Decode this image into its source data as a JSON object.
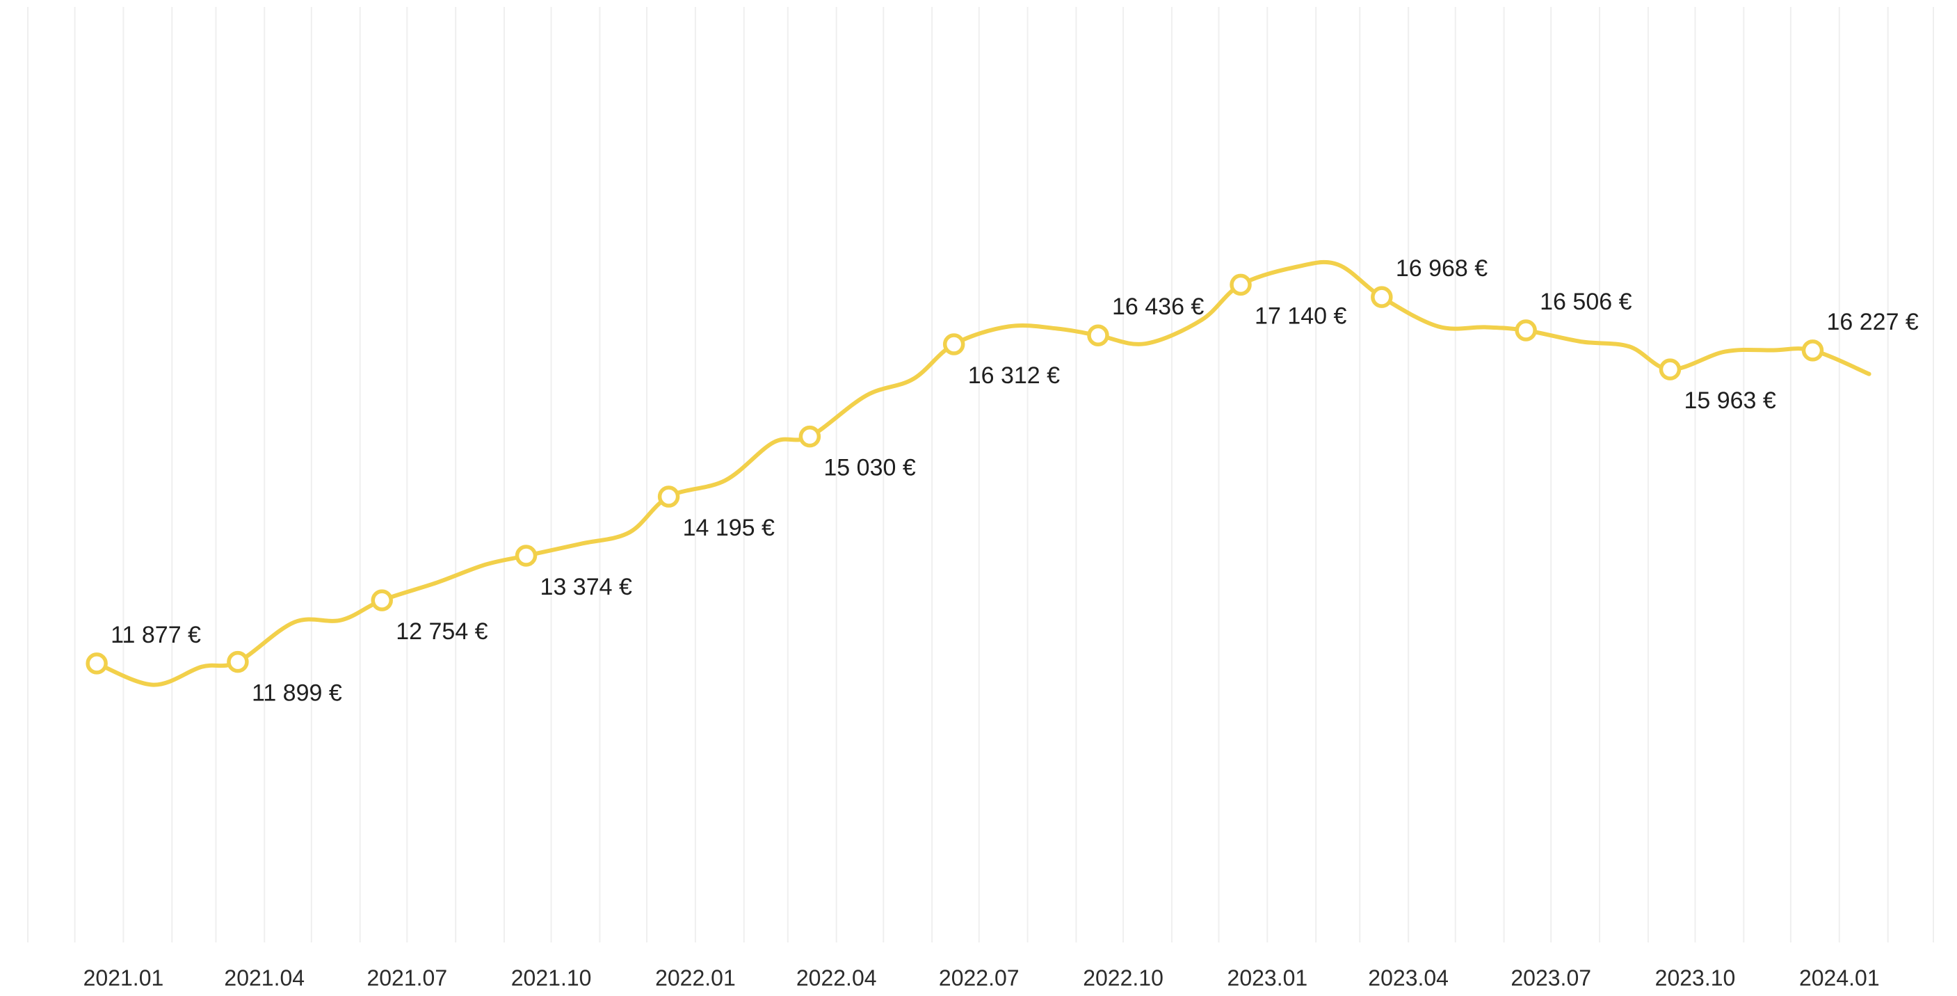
{
  "chart_data": {
    "type": "line",
    "title": "",
    "xlabel": "",
    "ylabel": "",
    "currency": "€",
    "series_color": "#f2d04a",
    "grid_color": "#efefef",
    "grid": "vertical",
    "y_range": [
      8000,
      21000
    ],
    "x_range": [
      "2020-11-01",
      "2024-03-01"
    ],
    "x_ticks": [
      {
        "date": "2021-01-01",
        "label": "2021.01"
      },
      {
        "date": "2021-04-01",
        "label": "2021.04"
      },
      {
        "date": "2021-07-01",
        "label": "2021.07"
      },
      {
        "date": "2021-10-01",
        "label": "2021.10"
      },
      {
        "date": "2022-01-01",
        "label": "2022.01"
      },
      {
        "date": "2022-04-01",
        "label": "2022.04"
      },
      {
        "date": "2022-07-01",
        "label": "2022.07"
      },
      {
        "date": "2022-10-01",
        "label": "2022.10"
      },
      {
        "date": "2023-01-01",
        "label": "2023.01"
      },
      {
        "date": "2023-04-01",
        "label": "2023.04"
      },
      {
        "date": "2023-07-01",
        "label": "2023.07"
      },
      {
        "date": "2023-10-01",
        "label": "2023.10"
      },
      {
        "date": "2024-01-01",
        "label": "2024.01"
      }
    ],
    "points": [
      {
        "date": "2020-12-15",
        "value": 11877,
        "label": "11 877 €",
        "label_pos": "above"
      },
      {
        "date": "2021-03-15",
        "value": 11899,
        "label": "11 899 €",
        "label_pos": "below"
      },
      {
        "date": "2021-06-15",
        "value": 12754,
        "label": "12 754 €",
        "label_pos": "below"
      },
      {
        "date": "2021-09-15",
        "value": 13374,
        "label": "13 374 €",
        "label_pos": "below"
      },
      {
        "date": "2021-12-15",
        "value": 14195,
        "label": "14 195 €",
        "label_pos": "below"
      },
      {
        "date": "2022-03-15",
        "value": 15030,
        "label": "15 030 €",
        "label_pos": "below"
      },
      {
        "date": "2022-06-15",
        "value": 16312,
        "label": "16 312 €",
        "label_pos": "below"
      },
      {
        "date": "2022-09-15",
        "value": 16436,
        "label": "16 436 €",
        "label_pos": "above"
      },
      {
        "date": "2022-12-15",
        "value": 17140,
        "label": "17 140 €",
        "label_pos": "below"
      },
      {
        "date": "2023-03-15",
        "value": 16968,
        "label": "16 968 €",
        "label_pos": "above"
      },
      {
        "date": "2023-06-15",
        "value": 16506,
        "label": "16 506 €",
        "label_pos": "above"
      },
      {
        "date": "2023-09-15",
        "value": 15963,
        "label": "15 963 €",
        "label_pos": "below"
      },
      {
        "date": "2023-12-15",
        "value": 16227,
        "label": "16 227 €",
        "label_pos": "above"
      }
    ],
    "curve": [
      {
        "date": "2020-12-15",
        "value": 11877
      },
      {
        "date": "2021-01-20",
        "value": 11580
      },
      {
        "date": "2021-02-20",
        "value": 11830
      },
      {
        "date": "2021-03-15",
        "value": 11899
      },
      {
        "date": "2021-04-20",
        "value": 12450
      },
      {
        "date": "2021-05-20",
        "value": 12480
      },
      {
        "date": "2021-06-15",
        "value": 12754
      },
      {
        "date": "2021-07-20",
        "value": 13000
      },
      {
        "date": "2021-08-20",
        "value": 13250
      },
      {
        "date": "2021-09-15",
        "value": 13374
      },
      {
        "date": "2021-10-20",
        "value": 13540
      },
      {
        "date": "2021-11-20",
        "value": 13700
      },
      {
        "date": "2021-12-15",
        "value": 14195
      },
      {
        "date": "2022-01-20",
        "value": 14420
      },
      {
        "date": "2022-02-20",
        "value": 14950
      },
      {
        "date": "2022-03-15",
        "value": 15030
      },
      {
        "date": "2022-04-20",
        "value": 15600
      },
      {
        "date": "2022-05-20",
        "value": 15830
      },
      {
        "date": "2022-06-15",
        "value": 16312
      },
      {
        "date": "2022-07-20",
        "value": 16560
      },
      {
        "date": "2022-08-20",
        "value": 16530
      },
      {
        "date": "2022-09-15",
        "value": 16436
      },
      {
        "date": "2022-10-15",
        "value": 16320
      },
      {
        "date": "2022-11-20",
        "value": 16650
      },
      {
        "date": "2022-12-15",
        "value": 17140
      },
      {
        "date": "2023-01-20",
        "value": 17390
      },
      {
        "date": "2023-02-15",
        "value": 17420
      },
      {
        "date": "2023-03-15",
        "value": 16968
      },
      {
        "date": "2023-04-20",
        "value": 16560
      },
      {
        "date": "2023-05-20",
        "value": 16550
      },
      {
        "date": "2023-06-15",
        "value": 16506
      },
      {
        "date": "2023-07-20",
        "value": 16350
      },
      {
        "date": "2023-08-20",
        "value": 16280
      },
      {
        "date": "2023-09-15",
        "value": 15963
      },
      {
        "date": "2023-10-20",
        "value": 16210
      },
      {
        "date": "2023-11-20",
        "value": 16230
      },
      {
        "date": "2023-12-15",
        "value": 16227
      },
      {
        "date": "2024-01-20",
        "value": 15900
      }
    ]
  }
}
